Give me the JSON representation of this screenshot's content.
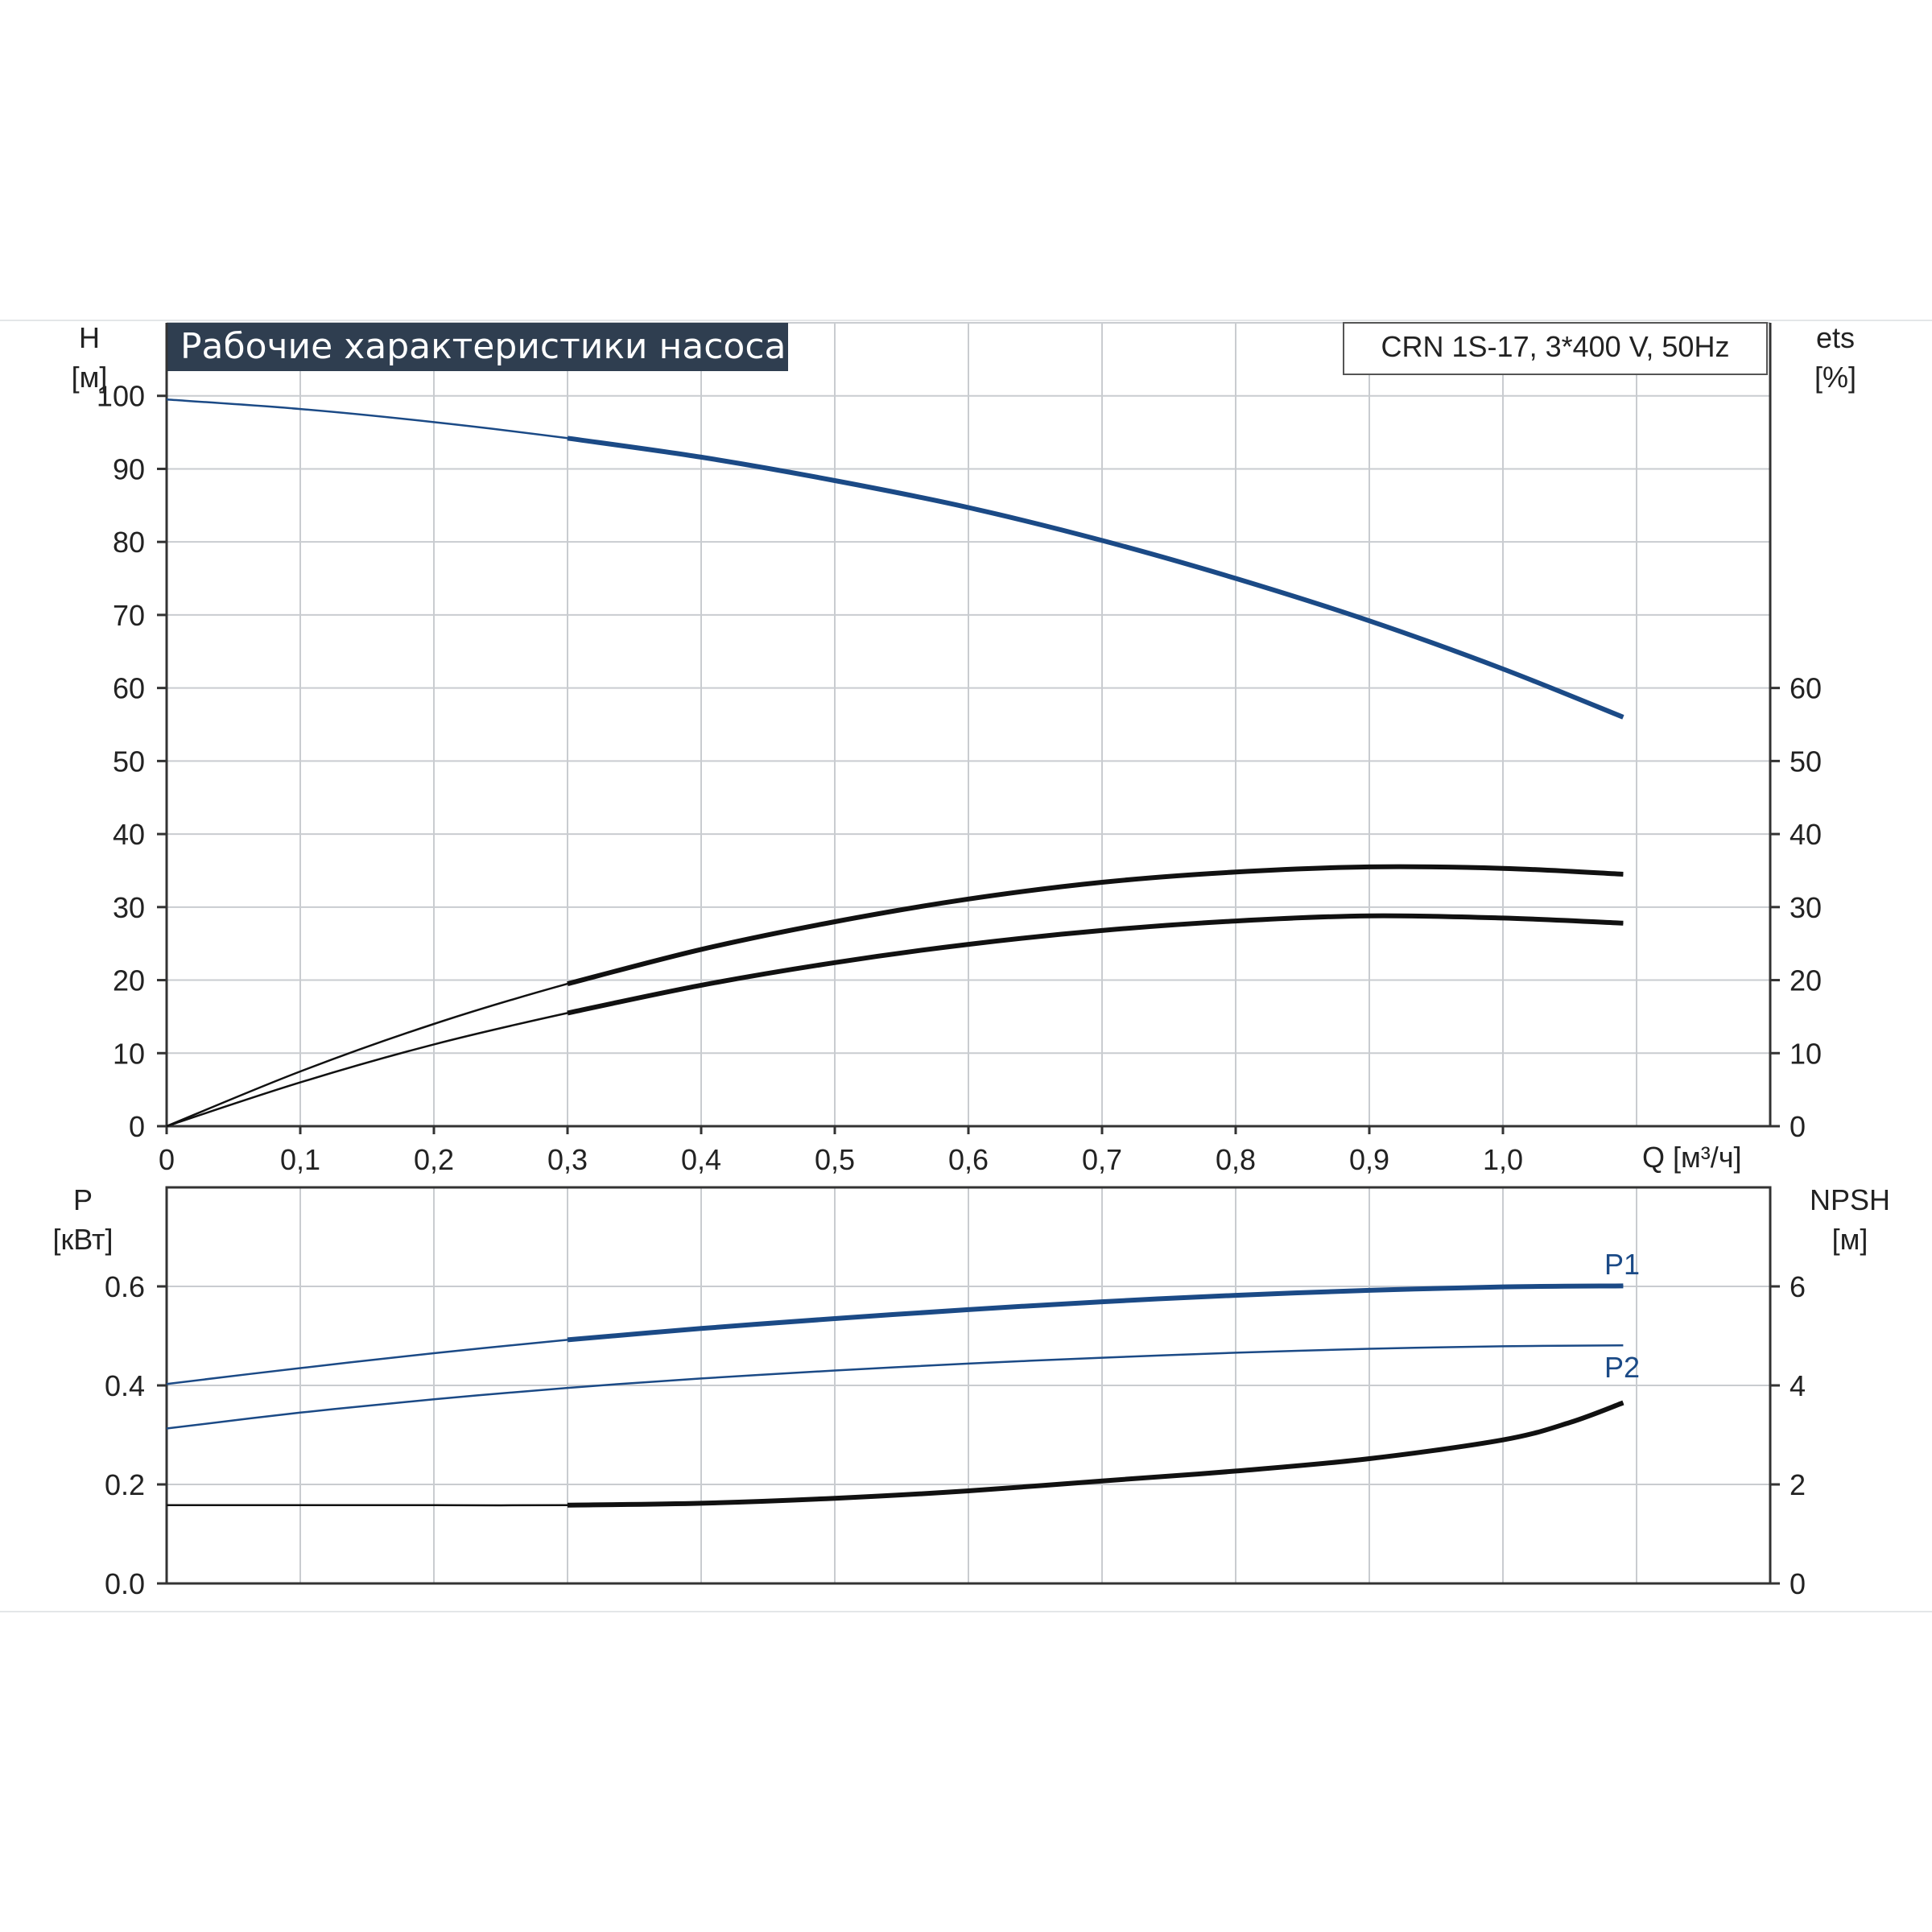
{
  "title": "Рабочие характеристики насоса",
  "model": "CRN 1S-17, 3*400 V, 50Hz",
  "colors": {
    "blue": "#1b4a86",
    "black": "#111111",
    "grid": "#c9ccd0",
    "title_bg": "#2f3e50",
    "title_fg": "#ffffff"
  },
  "chart_data": [
    {
      "type": "line",
      "panel": "top",
      "xlabel": "Q [м³/ч]",
      "ylabel_line1": "H",
      "ylabel_line2": "[м]",
      "y2label_line1": "ets",
      "y2label_line2": "[%]",
      "xlim": [
        0,
        1.2
      ],
      "ylim": [
        0,
        110
      ],
      "grid": true,
      "x_ticks": [
        "0",
        "0,1",
        "0,2",
        "0,3",
        "0,4",
        "0,5",
        "0,6",
        "0,7",
        "0,8",
        "0,9",
        "1,0"
      ],
      "y_ticks": [
        "0",
        "10",
        "20",
        "30",
        "40",
        "50",
        "60",
        "70",
        "80",
        "90",
        "100"
      ],
      "y2_ticks": [
        "0",
        "10",
        "20",
        "30",
        "40",
        "50",
        "60"
      ],
      "series": [
        {
          "id": "head",
          "color": "blue",
          "x": [
            0,
            0.1,
            0.2,
            0.3,
            0.4,
            0.5,
            0.6,
            0.7,
            0.8,
            0.9,
            1.0,
            1.09
          ],
          "y": [
            99.5,
            98.2,
            96.4,
            94.2,
            91.6,
            88.4,
            84.7,
            80.2,
            75.0,
            69.2,
            62.6,
            56.0
          ]
        },
        {
          "id": "eff-total",
          "color": "black",
          "x": [
            0,
            0.1,
            0.2,
            0.3,
            0.4,
            0.5,
            0.6,
            0.7,
            0.8,
            0.9,
            1.0,
            1.09
          ],
          "y": [
            0,
            7.5,
            14.0,
            19.5,
            24.2,
            28.0,
            31.1,
            33.4,
            34.8,
            35.5,
            35.3,
            34.5
          ]
        },
        {
          "id": "eff-pump",
          "color": "black",
          "x": [
            0,
            0.1,
            0.2,
            0.3,
            0.4,
            0.5,
            0.6,
            0.7,
            0.8,
            0.9,
            1.0,
            1.09
          ],
          "y": [
            0,
            6.0,
            11.2,
            15.5,
            19.3,
            22.4,
            24.9,
            26.8,
            28.1,
            28.8,
            28.5,
            27.8
          ]
        }
      ]
    },
    {
      "type": "line",
      "panel": "bottom",
      "ylabel_line1": "P",
      "ylabel_line2": "[кВт]",
      "y2label_line1": "NPSH",
      "y2label_line2": "[м]",
      "xlim": [
        0,
        1.2
      ],
      "ylim": [
        0,
        0.8
      ],
      "y2lim": [
        0,
        8
      ],
      "grid": true,
      "y_ticks": [
        "0.0",
        "0.2",
        "0.4",
        "0.6"
      ],
      "y2_ticks": [
        "0",
        "2",
        "4",
        "6"
      ],
      "series": [
        {
          "id": "p1",
          "name": "P1",
          "color": "blue",
          "axis": "left",
          "x": [
            0,
            0.1,
            0.2,
            0.3,
            0.4,
            0.5,
            0.6,
            0.7,
            0.8,
            0.9,
            1.0,
            1.09
          ],
          "y": [
            0.403,
            0.435,
            0.465,
            0.492,
            0.515,
            0.535,
            0.553,
            0.569,
            0.582,
            0.592,
            0.599,
            0.601
          ]
        },
        {
          "id": "p2",
          "name": "P2",
          "color": "blue",
          "axis": "left",
          "x": [
            0,
            0.1,
            0.2,
            0.3,
            0.4,
            0.5,
            0.6,
            0.7,
            0.8,
            0.9,
            1.0,
            1.09
          ],
          "y": [
            0.313,
            0.345,
            0.372,
            0.395,
            0.414,
            0.43,
            0.444,
            0.456,
            0.466,
            0.474,
            0.479,
            0.481
          ]
        },
        {
          "id": "npsh",
          "color": "black",
          "axis": "right",
          "x": [
            0,
            0.1,
            0.2,
            0.3,
            0.4,
            0.5,
            0.6,
            0.7,
            0.8,
            0.9,
            1.0,
            1.05,
            1.09
          ],
          "y": [
            1.58,
            1.58,
            1.58,
            1.58,
            1.62,
            1.72,
            1.87,
            2.07,
            2.27,
            2.52,
            2.9,
            3.25,
            3.65
          ]
        }
      ]
    }
  ]
}
